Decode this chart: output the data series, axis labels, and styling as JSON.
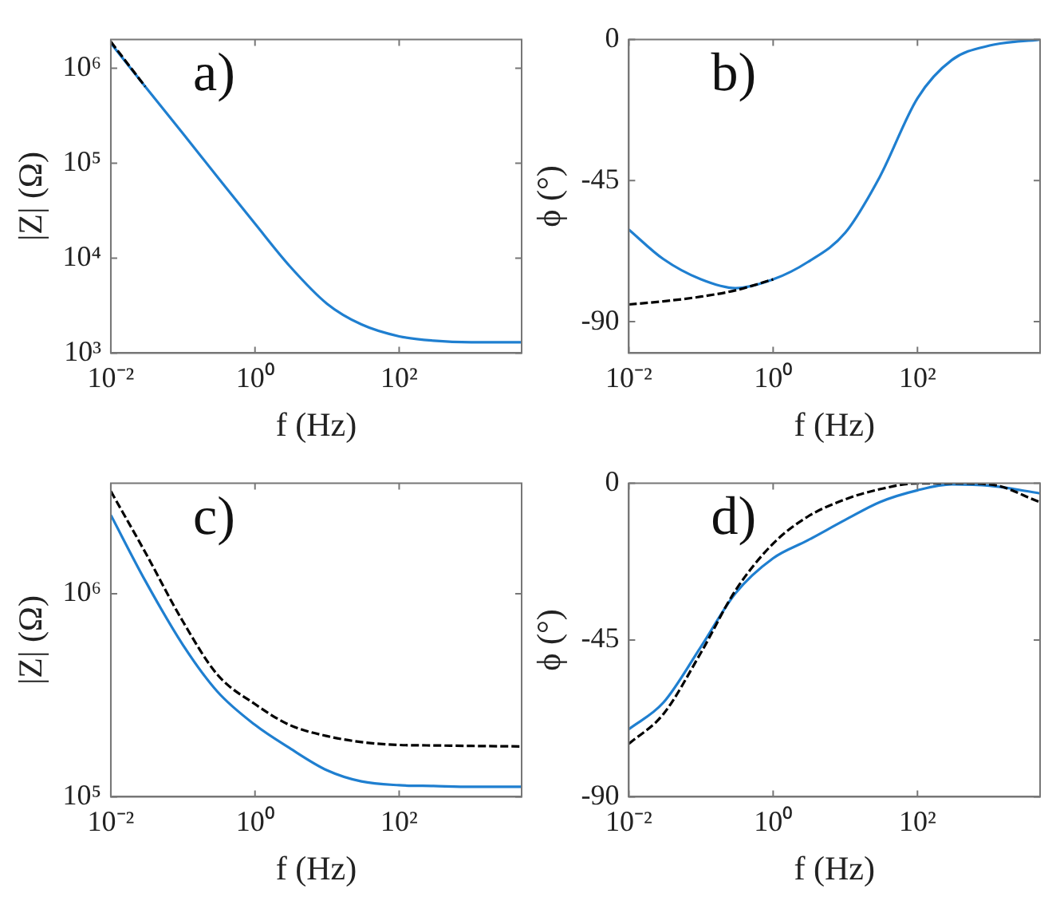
{
  "chart_data": [
    {
      "type": "line",
      "annotations": [
        "a)"
      ],
      "xlabel": "f (Hz)",
      "ylabel": "|Z| (Ω)",
      "log": "xy",
      "legend": false,
      "grid": false,
      "marker": "none",
      "x": [
        0.01,
        0.03,
        0.1,
        0.3,
        1,
        3,
        10,
        30,
        100,
        300,
        1000,
        5000
      ],
      "xlim": [
        0.01,
        5000
      ],
      "xticks": [
        {
          "value": 0.01,
          "label": "10⁻²"
        },
        {
          "value": 1,
          "label": "10⁰"
        },
        {
          "value": 100,
          "label": "10²"
        }
      ],
      "ylim": [
        1000,
        2000000
      ],
      "yticks": [
        {
          "value": 1000,
          "label": "10³"
        },
        {
          "value": 10000,
          "label": "10⁴"
        },
        {
          "value": 100000,
          "label": "10⁵"
        },
        {
          "value": 1000000,
          "label": "10⁶"
        }
      ],
      "series": [
        {
          "color": "#000000",
          "line_style": "dashed",
          "values": [
            1900000,
            640000,
            null,
            null,
            null,
            null,
            null,
            null,
            null,
            null,
            null,
            null
          ]
        },
        {
          "color": "#1f7fd0",
          "line_style": "solid",
          "values": [
            1830000,
            640000,
            205000,
            72000,
            23000,
            8300,
            3300,
            2000,
            1500,
            1350,
            1300,
            1300
          ]
        }
      ]
    },
    {
      "type": "line",
      "annotations": [
        "b)"
      ],
      "xlabel": "f (Hz)",
      "ylabel": "ϕ (°)",
      "log": "x",
      "legend": false,
      "grid": false,
      "marker": "none",
      "x": [
        0.01,
        0.03,
        0.1,
        0.3,
        1,
        3,
        10,
        30,
        100,
        300,
        1000,
        5000
      ],
      "xlim": [
        0.01,
        5000
      ],
      "xticks": [
        {
          "value": 0.01,
          "label": "10⁻²"
        },
        {
          "value": 1,
          "label": "10⁰"
        },
        {
          "value": 100,
          "label": "10²"
        }
      ],
      "ylim": [
        -100,
        0
      ],
      "yticks": [
        -90,
        -45,
        0
      ],
      "series": [
        {
          "color": "#000000",
          "line_style": "dashed",
          "values": [
            -84.5,
            -83.5,
            -82,
            -80,
            -76.5,
            null,
            null,
            null,
            null,
            null,
            null,
            null
          ]
        },
        {
          "color": "#1f7fd0",
          "line_style": "solid",
          "values": [
            -60.6,
            -70,
            -76.5,
            -79.3,
            -76.5,
            -71,
            -61.6,
            -43.8,
            -18.7,
            -6.5,
            -1.9,
            0
          ]
        }
      ]
    },
    {
      "type": "line",
      "annotations": [
        "c)"
      ],
      "xlabel": "f (Hz)",
      "ylabel": "|Z| (Ω)",
      "log": "xy",
      "legend": false,
      "grid": false,
      "marker": "none",
      "x": [
        0.01,
        0.03,
        0.1,
        0.3,
        1,
        3,
        10,
        30,
        100,
        300,
        1000,
        5000
      ],
      "xlim": [
        0.01,
        5000
      ],
      "xticks": [
        {
          "value": 0.01,
          "label": "10⁻²"
        },
        {
          "value": 1,
          "label": "10⁰"
        },
        {
          "value": 100,
          "label": "10²"
        }
      ],
      "ylim": [
        100000,
        3500000
      ],
      "yticks": [
        {
          "value": 100000,
          "label": "10⁵"
        },
        {
          "value": 1000000,
          "label": "10⁶"
        }
      ],
      "series": [
        {
          "color": "#000000",
          "line_style": "dashed",
          "values": [
            3200000,
            1600000,
            730000,
            400000,
            286000,
            226000,
            199000,
            186000,
            180000,
            179000,
            178000,
            177000
          ]
        },
        {
          "color": "#1f7fd0",
          "line_style": "solid",
          "values": [
            2440000,
            1160000,
            560000,
            330000,
            226000,
            174000,
            135000,
            119000,
            114000,
            113000,
            112000,
            112000
          ]
        }
      ]
    },
    {
      "type": "line",
      "annotations": [
        "d)"
      ],
      "xlabel": "f (Hz)",
      "ylabel": "ϕ (°)",
      "log": "x",
      "legend": false,
      "grid": false,
      "marker": "none",
      "x": [
        0.01,
        0.03,
        0.1,
        0.3,
        1,
        3,
        10,
        30,
        100,
        300,
        1000,
        5000
      ],
      "xlim": [
        0.01,
        5000
      ],
      "xticks": [
        {
          "value": 0.01,
          "label": "10⁻²"
        },
        {
          "value": 1,
          "label": "10⁰"
        },
        {
          "value": 100,
          "label": "10²"
        }
      ],
      "ylim": [
        -90,
        0
      ],
      "yticks": [
        -90,
        -45,
        0
      ],
      "series": [
        {
          "color": "#000000",
          "line_style": "dashed",
          "values": [
            -74.8,
            -66.3,
            -48.6,
            -30.8,
            -17.3,
            -9.6,
            -4.6,
            -1.7,
            0,
            0,
            -0.3,
            -5.4
          ]
        },
        {
          "color": "#1f7fd0",
          "line_style": "solid",
          "values": [
            -70.6,
            -63,
            -46.9,
            -31.6,
            -21.5,
            -16.4,
            -10.5,
            -5.4,
            -2,
            -0.3,
            -0.7,
            -2.9
          ]
        }
      ]
    }
  ]
}
